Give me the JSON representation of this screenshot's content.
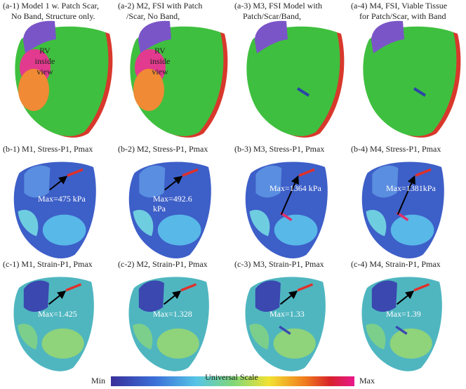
{
  "rows": [
    {
      "panels": [
        {
          "label": [
            "(a-1)  Model  1 w.  Patch Scar,",
            "No Band, Structure only."
          ],
          "annotation": [
            "RV",
            "inside",
            "view"
          ]
        },
        {
          "label": [
            "(a-2)  M2, FSI  with Patch",
            "/Scar,  No Band,"
          ],
          "annotation": [
            "RV",
            "inside",
            "view"
          ]
        },
        {
          "label": [
            "(a-3)  M3, FSI Model with",
            "Patch/Scar/Band,"
          ],
          "annotation": []
        },
        {
          "label": [
            "(a-4)  M4, FSI, Viable Tissue",
            "for Patch/Scar, with Band"
          ],
          "annotation": []
        }
      ]
    },
    {
      "panels": [
        {
          "label": [
            "(b-1)  M1, Stress-P1, Pmax"
          ],
          "annotation": [
            "Max=475 kPa"
          ]
        },
        {
          "label": [
            "(b-2)  M2, Stress-P1, Pmax"
          ],
          "annotation": [
            "Max=492.6",
            "kPa"
          ]
        },
        {
          "label": [
            "(b-3)  M3, Stress-P1, Pmax"
          ],
          "annotation": [
            "Max=1364 kPa"
          ]
        },
        {
          "label": [
            "(b-4)  M4, Stress-P1, Pmax"
          ],
          "annotation": [
            "Max=1381kPa"
          ]
        }
      ]
    },
    {
      "panels": [
        {
          "label": [
            "(c-1)  M1, Strain-P1, Pmax"
          ],
          "annotation": [
            "Max=1.425"
          ]
        },
        {
          "label": [
            "(c-2)  M2, Strain-P1, Pmax"
          ],
          "annotation": [
            "Max=1.328"
          ]
        },
        {
          "label": [
            "(c-3)  M3, Strain-P1, Pmax"
          ],
          "annotation": [
            "Max=1.33"
          ]
        },
        {
          "label": [
            "(c-4)  M4, Strain-P1, Pmax"
          ],
          "annotation": [
            "Max=1.39"
          ]
        }
      ]
    }
  ],
  "colorbar": {
    "min": "Min",
    "title": "Universal Scale",
    "max": "Max"
  }
}
